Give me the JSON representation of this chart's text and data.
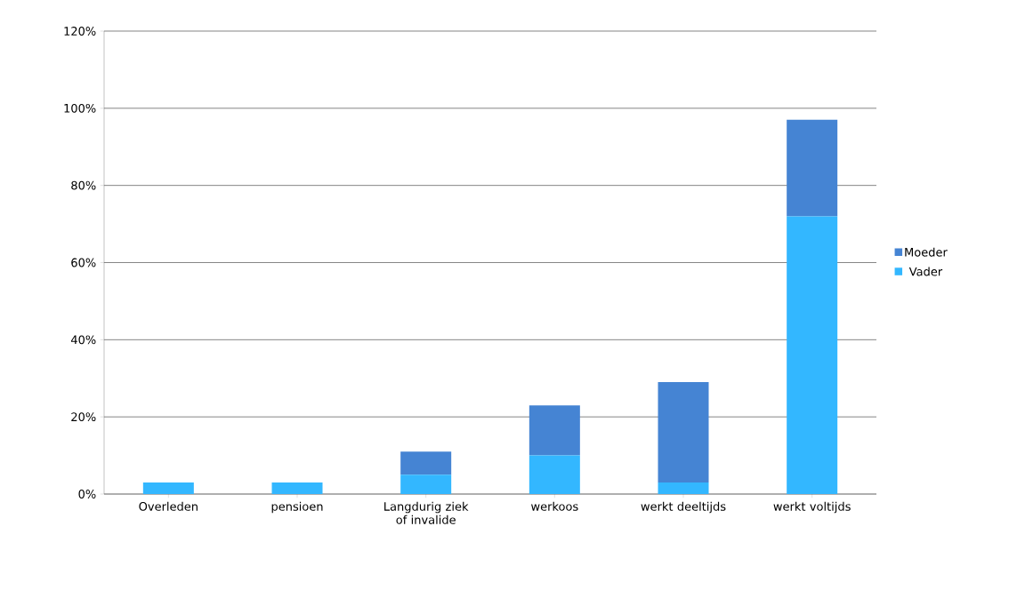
{
  "chart_data": {
    "type": "bar",
    "stacked": true,
    "categories": [
      "Overleden",
      "pensioen",
      "Langdurig ziek of invalide",
      "werkoos",
      "werkt deeltijds",
      "werkt voltijds"
    ],
    "series": [
      {
        "name": "Vader",
        "color": "#33b7ff",
        "values": [
          3,
          3,
          5,
          10,
          3,
          72
        ]
      },
      {
        "name": "Moeder",
        "color": "#4584d3",
        "values": [
          0,
          0,
          6,
          13,
          26,
          25
        ]
      }
    ],
    "ylim": [
      0,
      120
    ],
    "yticks": [
      {
        "value": 0,
        "label": "0%"
      },
      {
        "value": 20,
        "label": "20%"
      },
      {
        "value": 40,
        "label": "40%"
      },
      {
        "value": 60,
        "label": "60%"
      },
      {
        "value": 80,
        "label": "80%"
      },
      {
        "value": 100,
        "label": "100%"
      },
      {
        "value": 120,
        "label": "120%"
      }
    ],
    "grid": "y",
    "legend": "right"
  }
}
